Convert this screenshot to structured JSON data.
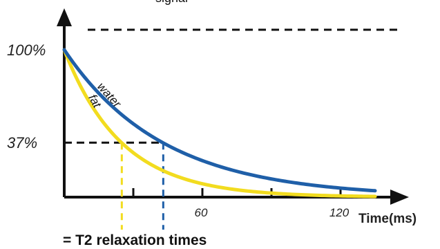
{
  "chart_data": {
    "type": "line",
    "title": "",
    "xlabel": "Time(ms)",
    "ylabel": "",
    "xlim": [
      0,
      135
    ],
    "ylim": [
      0,
      100
    ],
    "x_ticks": [
      30,
      60,
      90,
      120
    ],
    "x_tick_labels": [
      {
        "x": 60,
        "label": "60"
      },
      {
        "x": 120,
        "label": "120"
      }
    ],
    "y_levels": [
      {
        "y": 100,
        "label": "100%"
      },
      {
        "y": 37,
        "label": "37%"
      }
    ],
    "series": [
      {
        "name": "water",
        "t2": 43,
        "color": "#1f5fa8"
      },
      {
        "name": "fat",
        "t2": 25,
        "color": "#f2dc1f"
      }
    ],
    "caption": "= T2 relaxation times",
    "top_text_partial": "signal",
    "colors": {
      "axis": "#111111",
      "water": "#1f5fa8",
      "fat": "#f2dc1f",
      "guide": "#111111"
    }
  }
}
